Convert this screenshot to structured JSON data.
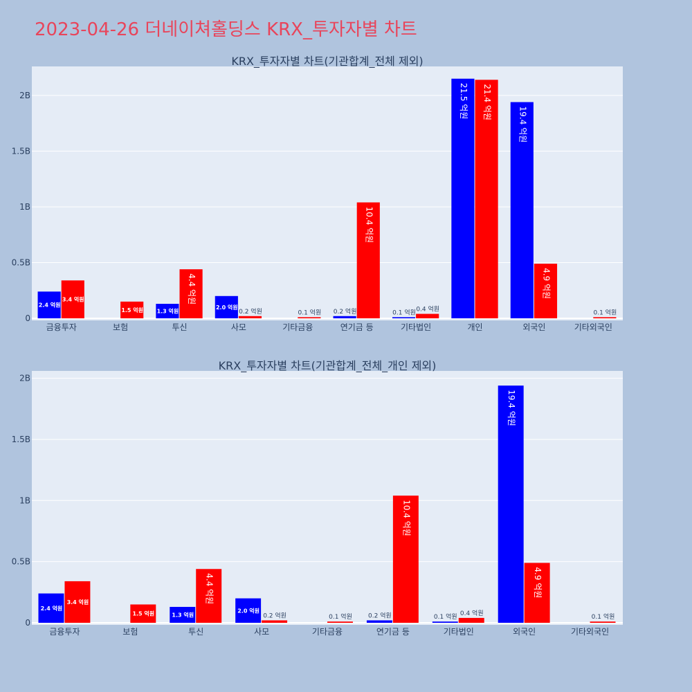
{
  "page": {
    "title": "2023-04-26 더네이쳐홀딩스 KRX_투자자별 차트"
  },
  "colors": {
    "series_a": "#0000ff",
    "series_b": "#ff0000",
    "plot_bg": "#e5ecf6",
    "page_bg": "#b0c4de",
    "title": "#e8455b"
  },
  "chart_data": [
    {
      "type": "bar",
      "title": "KRX_투자자별 차트(기관합계_전체 제외)",
      "categories": [
        "금융투자",
        "보험",
        "투신",
        "사모",
        "기타금융",
        "연기금 등",
        "기타법인",
        "개인",
        "외국인",
        "기타외국인"
      ],
      "series": [
        {
          "values": [
            240000000,
            0,
            130000000,
            200000000,
            0,
            20000000,
            10000000,
            2150000000,
            1940000000,
            0
          ],
          "labels": [
            "2.4 억원",
            "",
            "1.3 억원",
            "2.0 억원",
            "",
            "0.2 억원",
            "0.1 억원",
            "21.5 억원",
            "19.4 억원",
            ""
          ]
        },
        {
          "values": [
            340000000,
            150000000,
            440000000,
            20000000,
            10000000,
            1040000000,
            40000000,
            2140000000,
            490000000,
            10000000
          ],
          "labels": [
            "3.4 억원",
            "1.5 억원",
            "4.4 억원",
            "0.2 억원",
            "0.1 억원",
            "10.4 억원",
            "0.4 억원",
            "21.4 억원",
            "4.9 억원",
            "0.1 억원"
          ]
        }
      ],
      "ylim": [
        0,
        2260000000
      ],
      "yticks": [
        0,
        500000000,
        1000000000,
        1500000000,
        2000000000
      ],
      "ytick_labels": [
        "0",
        "0.5B",
        "1B",
        "1.5B",
        "2B"
      ],
      "grid": true
    },
    {
      "type": "bar",
      "title": "KRX_투자자별 차트(기관합계_전체_개인 제외)",
      "categories": [
        "금융투자",
        "보험",
        "투신",
        "사모",
        "기타금융",
        "연기금 등",
        "기타법인",
        "외국인",
        "기타외국인"
      ],
      "series": [
        {
          "values": [
            240000000,
            0,
            130000000,
            200000000,
            0,
            20000000,
            10000000,
            1940000000,
            0
          ],
          "labels": [
            "2.4 억원",
            "",
            "1.3 억원",
            "2.0 억원",
            "",
            "0.2 억원",
            "0.1 억원",
            "19.4 억원",
            ""
          ]
        },
        {
          "values": [
            340000000,
            150000000,
            440000000,
            20000000,
            10000000,
            1040000000,
            40000000,
            490000000,
            10000000
          ],
          "labels": [
            "3.4 억원",
            "1.5 억원",
            "4.4 억원",
            "0.2 억원",
            "0.1 억원",
            "10.4 억원",
            "0.4 억원",
            "4.9 억원",
            "0.1 억원"
          ]
        }
      ],
      "ylim": [
        0,
        2060000000
      ],
      "yticks": [
        0,
        500000000,
        1000000000,
        1500000000,
        2000000000
      ],
      "ytick_labels": [
        "0",
        "0.5B",
        "1B",
        "1.5B",
        "2B"
      ],
      "grid": true
    }
  ]
}
